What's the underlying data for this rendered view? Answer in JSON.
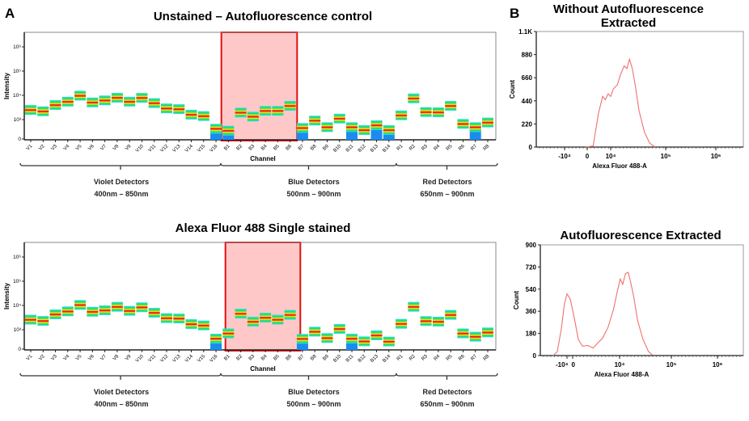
{
  "panel_labels": [
    "A",
    "B"
  ],
  "chart_data": [
    {
      "type": "spectrum",
      "title": "Unstained – Autofluorescence control",
      "xlabel": "Channel",
      "ylabel": "Intensity",
      "yscale": "biexponential",
      "yticks": [
        "0",
        "10³",
        "10⁴",
        "10⁵",
        "10⁶"
      ],
      "ytick_values": [
        0,
        1000,
        10000,
        100000,
        1000000
      ],
      "categories": [
        "V1",
        "V2",
        "V3",
        "V4",
        "V5",
        "V6",
        "V7",
        "V8",
        "V9",
        "V10",
        "V11",
        "V12",
        "V13",
        "V14",
        "V15",
        "V16",
        "B1",
        "B2",
        "B3",
        "B4",
        "B5",
        "B6",
        "B7",
        "B8",
        "B9",
        "B10",
        "B11",
        "B12",
        "B13",
        "B14",
        "R1",
        "R2",
        "R3",
        "R4",
        "R5",
        "R6",
        "R7",
        "R8"
      ],
      "median_values": [
        2500,
        2200,
        4000,
        5500,
        9700,
        5100,
        6200,
        8000,
        5500,
        7900,
        4800,
        2900,
        2700,
        1600,
        1400,
        530,
        430,
        1950,
        1330,
        2300,
        2300,
        3700,
        570,
        950,
        610,
        1100,
        610,
        460,
        710,
        460,
        1500,
        7500,
        2050,
        2000,
        3700,
        780,
        610,
        850
      ],
      "extends_to_zero": [
        "V16",
        "B1",
        "B7",
        "B11",
        "B13",
        "B14",
        "R7"
      ],
      "highlight": {
        "from": "B1",
        "to": "B6",
        "color": "#ffc8c8",
        "border": "#e01010"
      },
      "detector_groups": [
        {
          "name": "Violet Detectors",
          "range": "400nm – 850nm",
          "from": "V1",
          "to": "V16"
        },
        {
          "name": "Blue Detectors",
          "range": "500nm – 900nm",
          "from": "B1",
          "to": "B14"
        },
        {
          "name": "Red Detectors",
          "range": "650nm – 900nm",
          "from": "R1",
          "to": "R8"
        }
      ]
    },
    {
      "type": "spectrum",
      "title": "Alexa Fluor 488 Single stained",
      "xlabel": "Channel",
      "ylabel": "Intensity",
      "yscale": "biexponential",
      "yticks": [
        "0",
        "10³",
        "10⁴",
        "10⁵",
        "10⁶"
      ],
      "ytick_values": [
        0,
        1000,
        10000,
        100000,
        1000000
      ],
      "categories": [
        "V1",
        "V2",
        "V3",
        "V4",
        "V5",
        "V6",
        "V7",
        "V8",
        "V9",
        "V10",
        "V11",
        "V12",
        "V13",
        "V14",
        "V15",
        "V16",
        "B1",
        "B2",
        "B3",
        "B4",
        "B5",
        "B6",
        "B7",
        "B8",
        "B9",
        "B10",
        "B11",
        "B12",
        "B13",
        "B14",
        "R1",
        "R2",
        "R3",
        "R4",
        "R5",
        "R6",
        "R7",
        "R8"
      ],
      "median_values": [
        2600,
        2300,
        4300,
        5700,
        10500,
        5500,
        6300,
        8800,
        6000,
        8400,
        5000,
        3000,
        2900,
        1700,
        1500,
        540,
        810,
        4600,
        2150,
        3150,
        2600,
        4100,
        530,
        900,
        570,
        1080,
        540,
        400,
        710,
        390,
        1750,
        8800,
        2270,
        2150,
        4100,
        810,
        640,
        860
      ],
      "extends_to_zero": [
        "V16",
        "B7",
        "B11"
      ],
      "highlight": {
        "from": "B1",
        "to": "B6",
        "color": "#ffc8c8",
        "border": "#e01010"
      },
      "detector_groups": [
        {
          "name": "Violet Detectors",
          "range": "400nm – 850nm",
          "from": "V1",
          "to": "V16"
        },
        {
          "name": "Blue Detectors",
          "range": "500nm – 900nm",
          "from": "B1",
          "to": "B14"
        },
        {
          "name": "Red Detectors",
          "range": "650nm – 900nm",
          "from": "R1",
          "to": "R8"
        }
      ]
    },
    {
      "type": "line",
      "title_lines": [
        "Without Autofluorescence",
        "Extracted"
      ],
      "xlabel": "Alexa Fluor 488-A",
      "ylabel": "Count",
      "xscale": "biexponential",
      "xticks": [
        "-10⁴",
        "0",
        "10⁴",
        "10⁵",
        "10⁶"
      ],
      "yticks": [
        "0",
        "220",
        "440",
        "660",
        "880",
        "1.1K"
      ],
      "ylim": [
        0,
        1100
      ],
      "line_color": "#f07070",
      "x": [
        -500,
        2500,
        4800,
        6600,
        7700,
        8900,
        10000,
        11200,
        13200,
        14900,
        17600,
        19700,
        22000,
        24700,
        27600,
        32700,
        41000,
        51000,
        64000
      ],
      "y": [
        0,
        10,
        322,
        482,
        450,
        507,
        482,
        554,
        592,
        683,
        773,
        747,
        837,
        747,
        605,
        348,
        142,
        39,
        0
      ]
    },
    {
      "type": "line",
      "title_lines": [
        "Autofluorescence Extracted"
      ],
      "xlabel": "Alexa Fluor 488-A",
      "ylabel": "Count",
      "xscale": "biexponential",
      "xticks": [
        "-10⁴",
        "0",
        "10⁴",
        "10⁵",
        "10⁶"
      ],
      "yticks": [
        "0",
        "180",
        "360",
        "540",
        "720",
        "900"
      ],
      "ylim": [
        0,
        900
      ],
      "line_color": "#f07070",
      "x": [
        -42400,
        -32900,
        -23300,
        -16200,
        -10000,
        -4300,
        340,
        1200,
        2070,
        3220,
        4370,
        5230,
        6380,
        7530,
        8680,
        9540,
        10300,
        11500,
        13000,
        14700,
        16500,
        18700,
        22300,
        28400,
        36100,
        43300
      ],
      "y": [
        0,
        33,
        218,
        415,
        502,
        459,
        306,
        131,
        76,
        83,
        61,
        98,
        142,
        229,
        371,
        524,
        623,
        579,
        666,
        677,
        590,
        481,
        284,
        131,
        33,
        4
      ]
    }
  ]
}
